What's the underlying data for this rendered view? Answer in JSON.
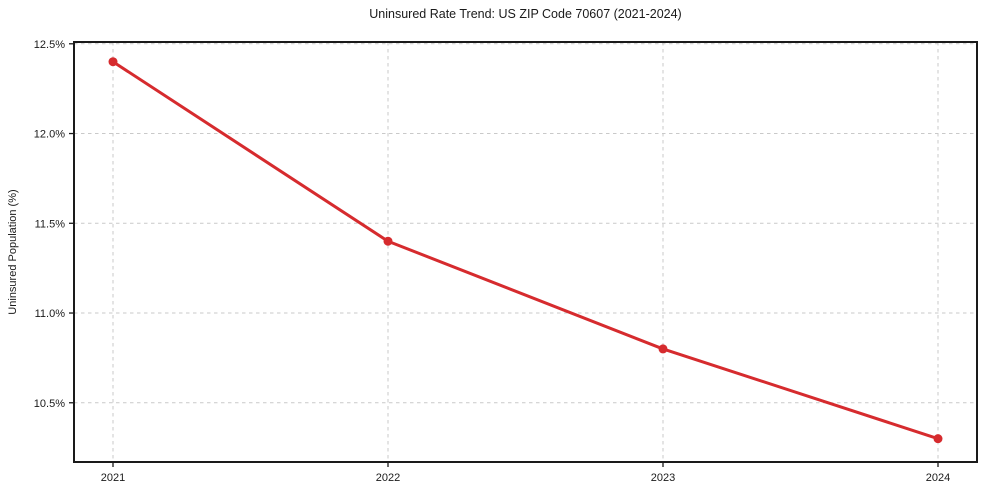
{
  "chart_data": {
    "type": "line",
    "title": "Uninsured Rate Trend: US ZIP Code 70607 (2021-2024)",
    "xlabel": "",
    "ylabel": "Uninsured Population (%)",
    "categories": [
      "2021",
      "2022",
      "2023",
      "2024"
    ],
    "values": [
      12.4,
      11.4,
      10.8,
      10.3
    ],
    "y_ticks": [
      12.5,
      12.0,
      11.5,
      11.0,
      10.5
    ],
    "y_tick_labels": [
      "12.5%",
      "12.0%",
      "11.5%",
      "11.0%",
      "10.5%"
    ],
    "ylim": [
      10.17,
      12.51
    ],
    "grid": "dashed, horizontal and vertical at ticks",
    "legend": "none",
    "colors": {
      "line": "#d62b2e",
      "marker": "#d62b2e",
      "grid": "#c9c9c9",
      "frame": "#1a1a1a",
      "text": "#1a1a1a",
      "background": "#ffffff"
    }
  }
}
